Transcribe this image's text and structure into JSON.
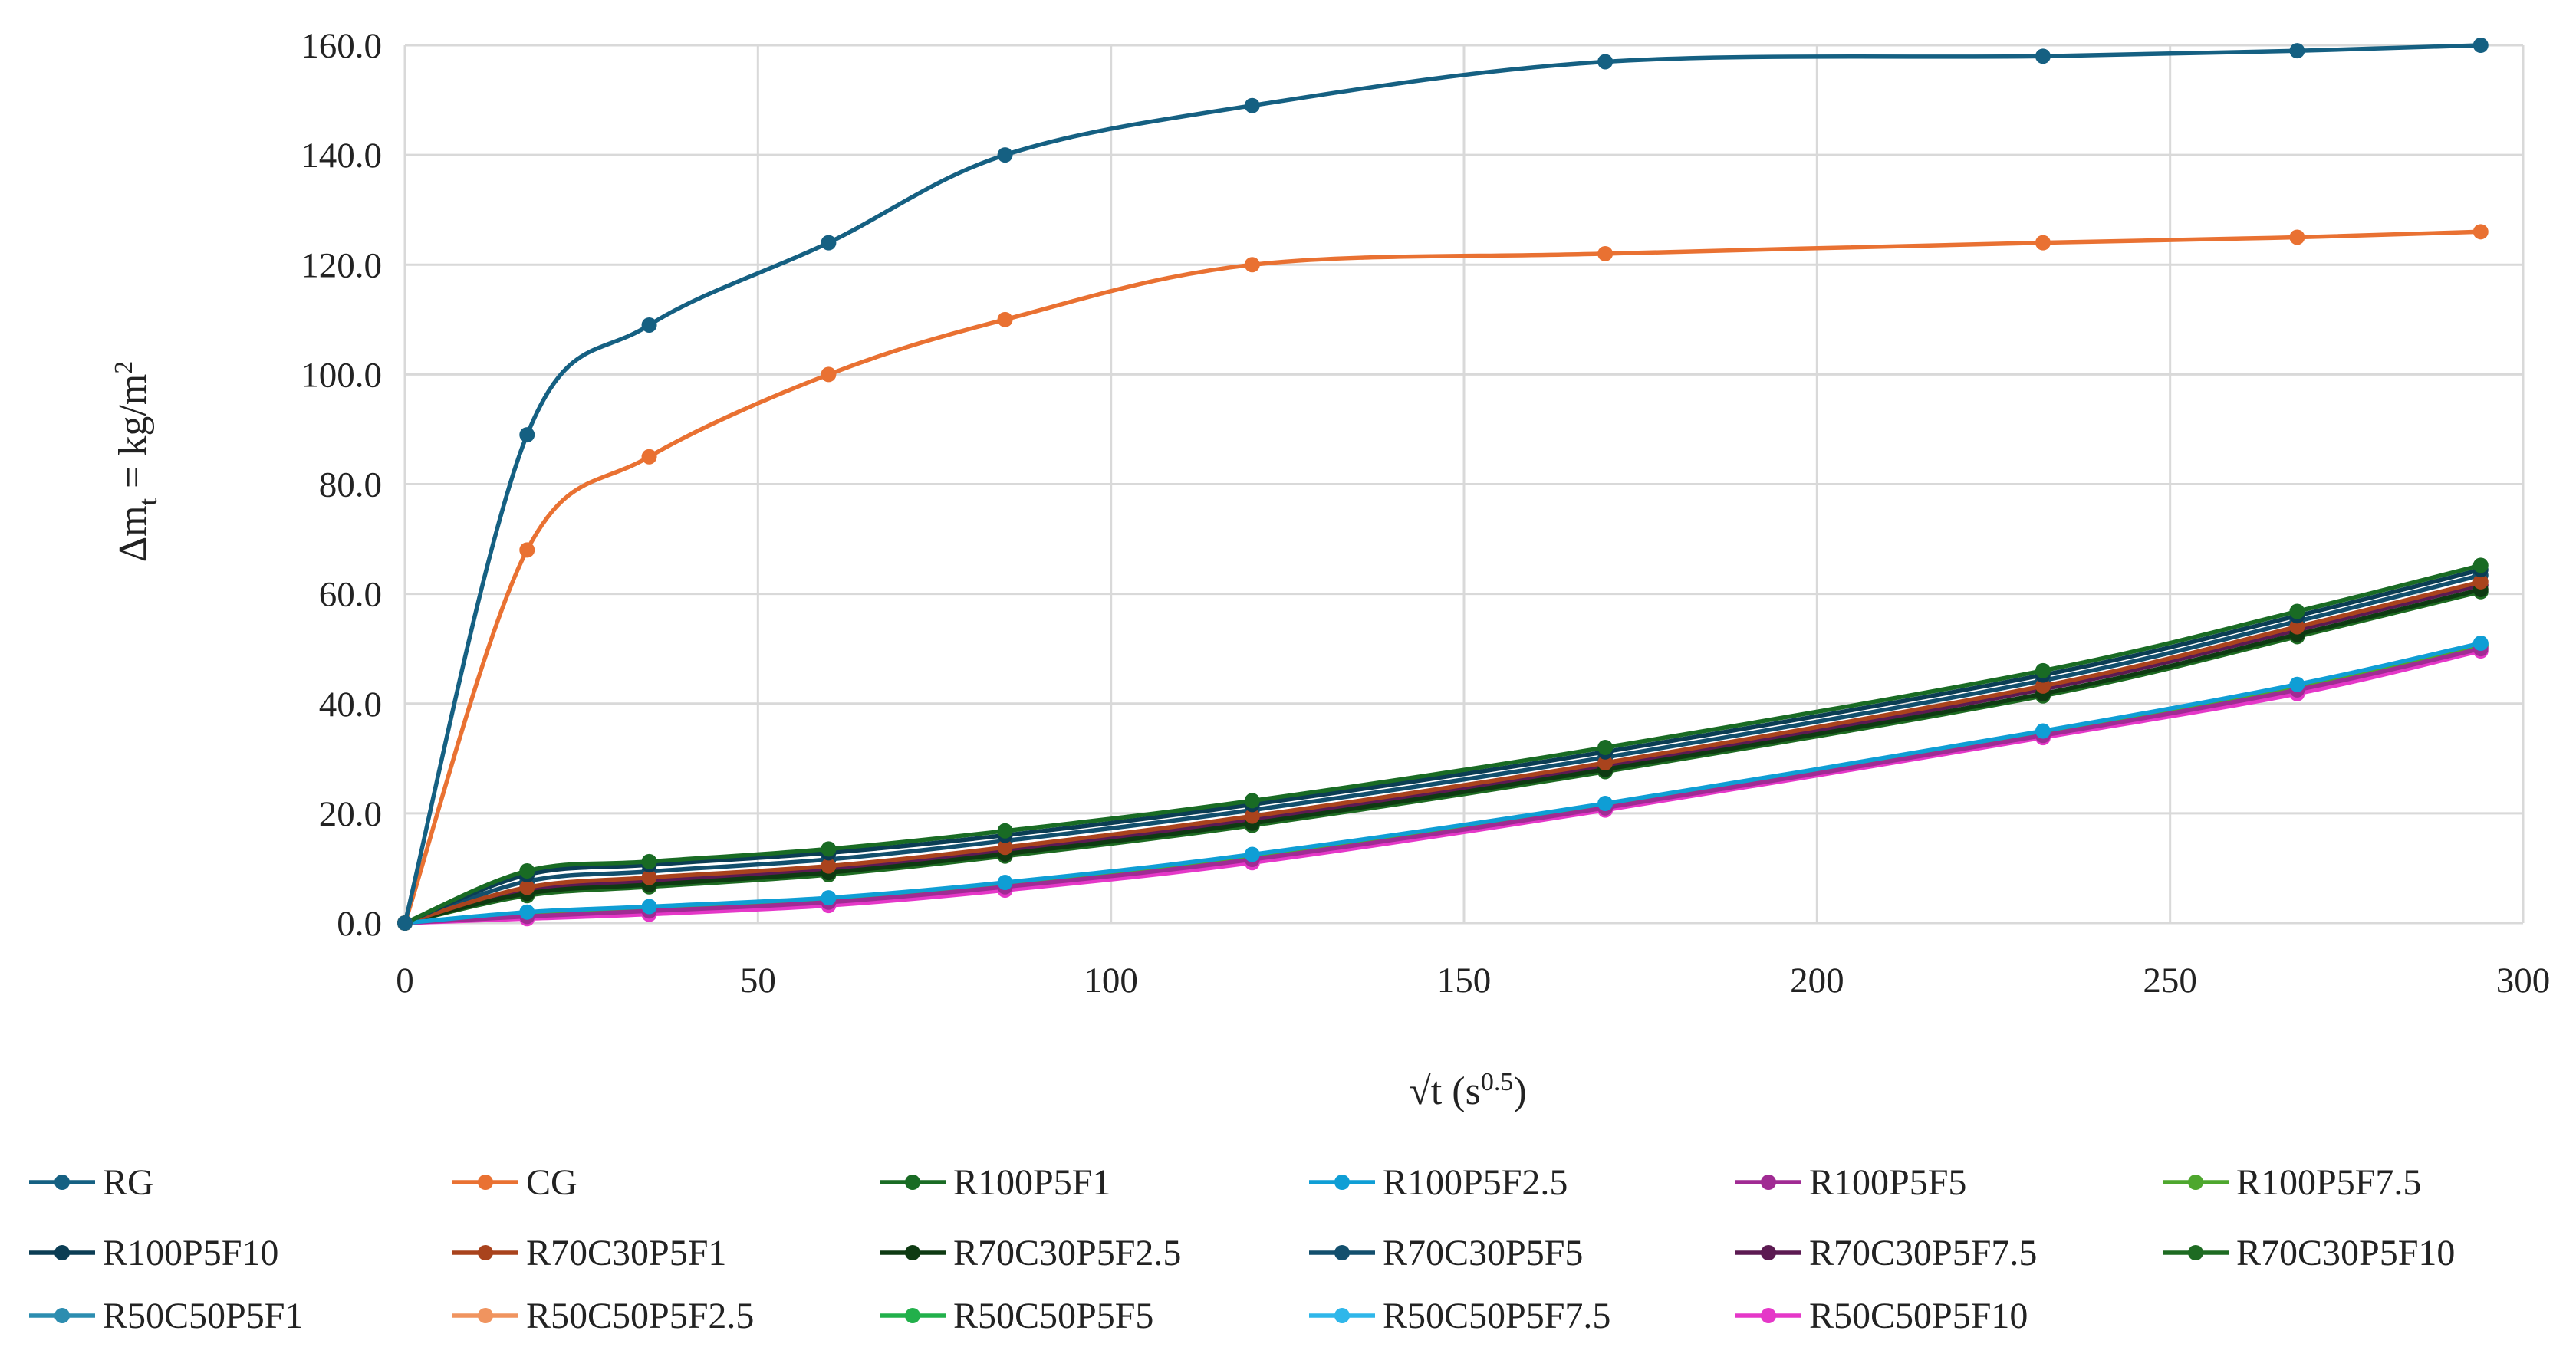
{
  "chart_data": {
    "type": "line",
    "title": "",
    "xlabel": "√t (s",
    "xlabel_sup": "0.5",
    "xlabel_close": ")",
    "ylabel": "Δm",
    "ylabel_sub": "t",
    "ylabel_rest": " = kg/m",
    "ylabel_sup": "2",
    "xlim": [
      0,
      300
    ],
    "ylim": [
      0,
      160
    ],
    "x_ticks": [
      0,
      50,
      100,
      150,
      200,
      250,
      300
    ],
    "x_tick_labels": [
      "0",
      "50",
      "100",
      "150",
      "200",
      "250",
      "300"
    ],
    "y_ticks": [
      0,
      20,
      40,
      60,
      80,
      100,
      120,
      140,
      160
    ],
    "y_tick_labels": [
      "0.0",
      "20.0",
      "40.0",
      "60.0",
      "80.0",
      "100.0",
      "120.0",
      "140.0",
      "160.0"
    ],
    "grid": true,
    "legend_position": "bottom",
    "x": [
      0,
      17.3,
      34.6,
      60,
      85,
      120,
      170,
      232,
      268,
      294
    ],
    "series": [
      {
        "name": "RG",
        "color": "#156082",
        "values": [
          0,
          89,
          109,
          124,
          140,
          149,
          157,
          158,
          159,
          160
        ]
      },
      {
        "name": "CG",
        "color": "#E97132",
        "values": [
          0,
          68,
          85,
          100,
          110,
          120,
          122,
          124,
          125,
          126
        ]
      },
      {
        "name": "R100P5F1",
        "color": "#196B24",
        "values": [
          0,
          9.5,
          11.2,
          13.5,
          16.8,
          22.3,
          32.0,
          46.0,
          56.8,
          65.2
        ]
      },
      {
        "name": "R100P5F2.5",
        "color": "#0F9ED5",
        "values": [
          0,
          2.0,
          3.0,
          4.6,
          7.4,
          12.5,
          21.8,
          35.0,
          43.5,
          51.0
        ]
      },
      {
        "name": "R100P5F5",
        "color": "#A02B93",
        "values": [
          0,
          1.2,
          2.2,
          3.8,
          6.6,
          11.6,
          21.0,
          34.2,
          42.5,
          50.0
        ]
      },
      {
        "name": "R100P5F7.5",
        "color": "#4EA72E",
        "values": [
          0,
          1.6,
          2.6,
          4.2,
          7.0,
          12.0,
          21.4,
          34.6,
          43.0,
          50.5
        ]
      },
      {
        "name": "R100P5F10",
        "color": "#0B3D54",
        "values": [
          0,
          8.8,
          10.6,
          12.8,
          16.0,
          21.6,
          31.2,
          45.2,
          56.0,
          64.4
        ]
      },
      {
        "name": "R70C30P5F1",
        "color": "#A9431D",
        "values": [
          0,
          6.5,
          8.3,
          10.4,
          13.8,
          19.5,
          29.2,
          43.2,
          54.0,
          62.2
        ]
      },
      {
        "name": "R70C30P5F2.5",
        "color": "#0E3A12",
        "values": [
          0,
          5.4,
          7.0,
          9.2,
          12.6,
          18.2,
          28.0,
          41.8,
          52.6,
          60.8
        ]
      },
      {
        "name": "R70C30P5F5",
        "color": "#124F6D",
        "values": [
          0,
          7.6,
          9.4,
          11.6,
          15.0,
          20.6,
          30.2,
          44.2,
          55.0,
          63.4
        ]
      },
      {
        "name": "R70C30P5F7.5",
        "color": "#5C1A52",
        "values": [
          0,
          6.0,
          7.7,
          9.8,
          13.2,
          18.9,
          28.6,
          42.6,
          53.4,
          61.6
        ]
      },
      {
        "name": "R70C30P5F10",
        "color": "#1E6B22",
        "values": [
          0,
          5.0,
          6.6,
          8.8,
          12.2,
          17.8,
          27.6,
          41.4,
          52.2,
          60.4
        ]
      },
      {
        "name": "R50C50P5F1",
        "color": "#2C8DB0",
        "values": [
          0,
          1.8,
          2.8,
          4.4,
          7.2,
          12.3,
          21.6,
          34.8,
          43.2,
          50.8
        ]
      },
      {
        "name": "R50C50P5F2.5",
        "color": "#F0945F",
        "values": [
          0,
          1.4,
          2.4,
          4.0,
          6.8,
          11.8,
          21.2,
          34.4,
          42.8,
          50.3
        ]
      },
      {
        "name": "R50C50P5F5",
        "color": "#22B04B",
        "values": [
          0,
          1.7,
          2.7,
          4.3,
          7.1,
          12.1,
          21.5,
          34.7,
          43.1,
          50.6
        ]
      },
      {
        "name": "R50C50P5F7.5",
        "color": "#2FB7EA",
        "values": [
          0,
          1.9,
          2.9,
          4.5,
          7.3,
          12.4,
          21.7,
          34.9,
          43.3,
          50.9
        ]
      },
      {
        "name": "R50C50P5F10",
        "color": "#E537C8",
        "values": [
          0,
          0.8,
          1.6,
          3.2,
          6.0,
          11.0,
          20.6,
          33.8,
          41.8,
          49.6
        ]
      }
    ]
  }
}
